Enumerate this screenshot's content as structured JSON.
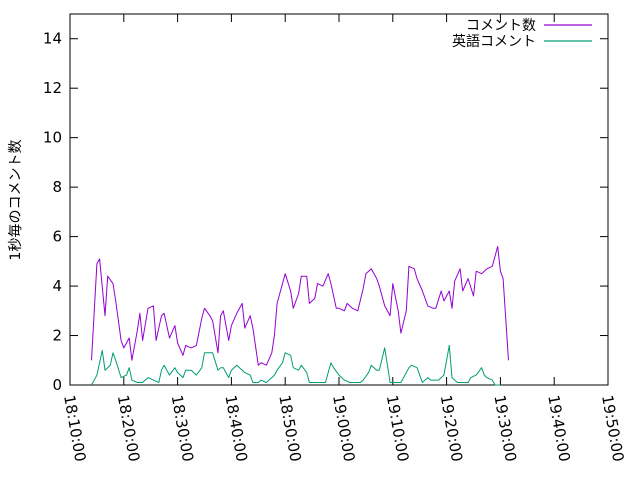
{
  "chart_data": {
    "type": "line",
    "title": "",
    "xlabel": "",
    "ylabel": "1秒毎のコメント数",
    "xlim": [
      "18:10:00",
      "19:50:00"
    ],
    "ylim": [
      0,
      15
    ],
    "y_ticks": [
      0,
      2,
      4,
      6,
      8,
      10,
      12,
      14
    ],
    "x_ticks": [
      "18:10:00",
      "18:20:00",
      "18:30:00",
      "18:40:00",
      "18:50:00",
      "19:00:00",
      "19:10:00",
      "19:20:00",
      "19:30:00",
      "19:40:00",
      "19:50:00"
    ],
    "legend_position": "top-right",
    "grid": false,
    "series": [
      {
        "name": "コメント数",
        "color": "#9400d3",
        "points": [
          [
            "18:14:00",
            1.0
          ],
          [
            "18:15:00",
            4.9
          ],
          [
            "18:15:30",
            5.1
          ],
          [
            "18:16:30",
            2.8
          ],
          [
            "18:17:00",
            4.4
          ],
          [
            "18:18:00",
            4.1
          ],
          [
            "18:18:30",
            3.4
          ],
          [
            "18:19:30",
            1.8
          ],
          [
            "18:20:00",
            1.5
          ],
          [
            "18:21:00",
            1.9
          ],
          [
            "18:21:30",
            1.0
          ],
          [
            "18:22:30",
            2.2
          ],
          [
            "18:23:00",
            2.9
          ],
          [
            "18:23:30",
            1.8
          ],
          [
            "18:24:30",
            3.1
          ],
          [
            "18:25:30",
            3.2
          ],
          [
            "18:26:00",
            1.8
          ],
          [
            "18:27:00",
            2.8
          ],
          [
            "18:27:30",
            2.9
          ],
          [
            "18:28:30",
            1.9
          ],
          [
            "18:29:30",
            2.4
          ],
          [
            "18:30:00",
            1.7
          ],
          [
            "18:31:00",
            1.2
          ],
          [
            "18:31:30",
            1.6
          ],
          [
            "18:32:30",
            1.5
          ],
          [
            "18:33:30",
            1.6
          ],
          [
            "18:34:30",
            2.7
          ],
          [
            "18:35:00",
            3.1
          ],
          [
            "18:36:00",
            2.8
          ],
          [
            "18:36:30",
            2.6
          ],
          [
            "18:37:30",
            1.3
          ],
          [
            "18:38:00",
            2.8
          ],
          [
            "18:38:30",
            3.0
          ],
          [
            "18:39:30",
            1.8
          ],
          [
            "18:40:00",
            2.4
          ],
          [
            "18:41:00",
            2.9
          ],
          [
            "18:42:00",
            3.3
          ],
          [
            "18:42:30",
            2.3
          ],
          [
            "18:43:30",
            2.8
          ],
          [
            "18:44:00",
            2.3
          ],
          [
            "18:45:00",
            0.8
          ],
          [
            "18:45:30",
            0.9
          ],
          [
            "18:46:30",
            0.8
          ],
          [
            "18:47:30",
            1.3
          ],
          [
            "18:48:00",
            2.0
          ],
          [
            "18:48:30",
            3.3
          ],
          [
            "18:49:30",
            4.1
          ],
          [
            "18:50:00",
            4.5
          ],
          [
            "18:51:00",
            3.8
          ],
          [
            "18:51:30",
            3.1
          ],
          [
            "18:52:30",
            3.7
          ],
          [
            "18:53:00",
            4.4
          ],
          [
            "18:54:00",
            4.4
          ],
          [
            "18:54:30",
            3.3
          ],
          [
            "18:55:30",
            3.5
          ],
          [
            "18:56:00",
            4.1
          ],
          [
            "18:57:00",
            4.0
          ],
          [
            "18:58:00",
            4.5
          ],
          [
            "18:58:30",
            4.1
          ],
          [
            "18:59:30",
            3.1
          ],
          [
            "19:00:00",
            3.1
          ],
          [
            "19:01:00",
            3.0
          ],
          [
            "19:01:30",
            3.3
          ],
          [
            "19:02:30",
            3.1
          ],
          [
            "19:03:30",
            3.0
          ],
          [
            "19:04:30",
            3.9
          ],
          [
            "19:05:00",
            4.5
          ],
          [
            "19:06:00",
            4.7
          ],
          [
            "19:07:00",
            4.3
          ],
          [
            "19:07:30",
            4.0
          ],
          [
            "19:08:30",
            3.2
          ],
          [
            "19:09:30",
            2.8
          ],
          [
            "19:10:00",
            4.1
          ],
          [
            "19:11:00",
            3.0
          ],
          [
            "19:11:30",
            2.1
          ],
          [
            "19:12:30",
            3.0
          ],
          [
            "19:13:00",
            4.8
          ],
          [
            "19:14:00",
            4.7
          ],
          [
            "19:14:30",
            4.3
          ],
          [
            "19:15:30",
            3.8
          ],
          [
            "19:16:30",
            3.2
          ],
          [
            "19:17:30",
            3.1
          ],
          [
            "19:18:00",
            3.1
          ],
          [
            "19:19:00",
            3.8
          ],
          [
            "19:19:30",
            3.4
          ],
          [
            "19:20:30",
            3.8
          ],
          [
            "19:21:00",
            3.1
          ],
          [
            "19:21:30",
            4.2
          ],
          [
            "19:22:30",
            4.7
          ],
          [
            "19:23:00",
            3.8
          ],
          [
            "19:24:00",
            4.3
          ],
          [
            "19:25:00",
            3.6
          ],
          [
            "19:25:30",
            4.6
          ],
          [
            "19:26:30",
            4.5
          ],
          [
            "19:27:30",
            4.7
          ],
          [
            "19:28:30",
            4.8
          ],
          [
            "19:29:30",
            5.6
          ],
          [
            "19:30:00",
            4.6
          ],
          [
            "19:30:30",
            4.3
          ],
          [
            "19:31:30",
            1.0
          ]
        ]
      },
      {
        "name": "英語コメント",
        "color": "#009e73",
        "points": [
          [
            "18:14:00",
            0.0
          ],
          [
            "18:15:00",
            0.4
          ],
          [
            "18:16:00",
            1.4
          ],
          [
            "18:16:30",
            0.6
          ],
          [
            "18:17:30",
            0.8
          ],
          [
            "18:18:00",
            1.3
          ],
          [
            "18:18:30",
            1.0
          ],
          [
            "18:19:30",
            0.3
          ],
          [
            "18:20:30",
            0.4
          ],
          [
            "18:21:00",
            0.7
          ],
          [
            "18:21:30",
            0.2
          ],
          [
            "18:22:30",
            0.1
          ],
          [
            "18:23:30",
            0.1
          ],
          [
            "18:24:30",
            0.3
          ],
          [
            "18:25:30",
            0.2
          ],
          [
            "18:26:30",
            0.1
          ],
          [
            "18:27:00",
            0.6
          ],
          [
            "18:27:30",
            0.8
          ],
          [
            "18:28:30",
            0.4
          ],
          [
            "18:29:30",
            0.7
          ],
          [
            "18:30:00",
            0.5
          ],
          [
            "18:31:00",
            0.3
          ],
          [
            "18:31:30",
            0.6
          ],
          [
            "18:32:30",
            0.6
          ],
          [
            "18:33:30",
            0.4
          ],
          [
            "18:34:30",
            0.7
          ],
          [
            "18:35:00",
            1.3
          ],
          [
            "18:36:00",
            1.3
          ],
          [
            "18:36:30",
            1.3
          ],
          [
            "18:37:30",
            0.6
          ],
          [
            "18:38:00",
            0.7
          ],
          [
            "18:38:30",
            0.7
          ],
          [
            "18:39:30",
            0.3
          ],
          [
            "18:40:00",
            0.6
          ],
          [
            "18:41:00",
            0.8
          ],
          [
            "18:42:00",
            0.6
          ],
          [
            "18:42:30",
            0.5
          ],
          [
            "18:43:30",
            0.4
          ],
          [
            "18:44:00",
            0.1
          ],
          [
            "18:45:00",
            0.1
          ],
          [
            "18:45:30",
            0.2
          ],
          [
            "18:46:30",
            0.1
          ],
          [
            "18:47:30",
            0.3
          ],
          [
            "18:48:00",
            0.4
          ],
          [
            "18:48:30",
            0.6
          ],
          [
            "18:49:30",
            0.9
          ],
          [
            "18:50:00",
            1.3
          ],
          [
            "18:51:00",
            1.2
          ],
          [
            "18:51:30",
            0.7
          ],
          [
            "18:52:30",
            0.6
          ],
          [
            "18:53:00",
            0.8
          ],
          [
            "18:54:00",
            0.5
          ],
          [
            "18:54:30",
            0.1
          ],
          [
            "18:55:30",
            0.1
          ],
          [
            "18:56:30",
            0.1
          ],
          [
            "18:57:30",
            0.1
          ],
          [
            "18:58:30",
            0.9
          ],
          [
            "18:59:00",
            0.7
          ],
          [
            "19:00:00",
            0.4
          ],
          [
            "19:01:00",
            0.2
          ],
          [
            "19:02:00",
            0.1
          ],
          [
            "19:03:00",
            0.1
          ],
          [
            "19:04:00",
            0.1
          ],
          [
            "19:04:30",
            0.2
          ],
          [
            "19:05:30",
            0.5
          ],
          [
            "19:06:00",
            0.8
          ],
          [
            "19:07:00",
            0.6
          ],
          [
            "19:07:30",
            0.6
          ],
          [
            "19:08:30",
            1.5
          ],
          [
            "19:09:00",
            0.8
          ],
          [
            "19:09:30",
            0.1
          ],
          [
            "19:10:30",
            0.1
          ],
          [
            "19:11:30",
            0.1
          ],
          [
            "19:12:00",
            0.3
          ],
          [
            "19:13:00",
            0.7
          ],
          [
            "19:13:30",
            0.8
          ],
          [
            "19:14:30",
            0.7
          ],
          [
            "19:15:30",
            0.1
          ],
          [
            "19:16:30",
            0.3
          ],
          [
            "19:17:00",
            0.2
          ],
          [
            "19:17:30",
            0.2
          ],
          [
            "19:18:30",
            0.2
          ],
          [
            "19:19:30",
            0.4
          ],
          [
            "19:20:00",
            1.0
          ],
          [
            "19:20:30",
            1.6
          ],
          [
            "19:21:00",
            0.3
          ],
          [
            "19:22:00",
            0.1
          ],
          [
            "19:23:00",
            0.1
          ],
          [
            "19:24:00",
            0.1
          ],
          [
            "19:24:30",
            0.3
          ],
          [
            "19:25:30",
            0.4
          ],
          [
            "19:26:30",
            0.7
          ],
          [
            "19:27:00",
            0.4
          ],
          [
            "19:27:30",
            0.3
          ],
          [
            "19:28:30",
            0.2
          ],
          [
            "19:29:00",
            0.0
          ],
          [
            "19:30:00",
            0.0
          ]
        ]
      }
    ]
  }
}
